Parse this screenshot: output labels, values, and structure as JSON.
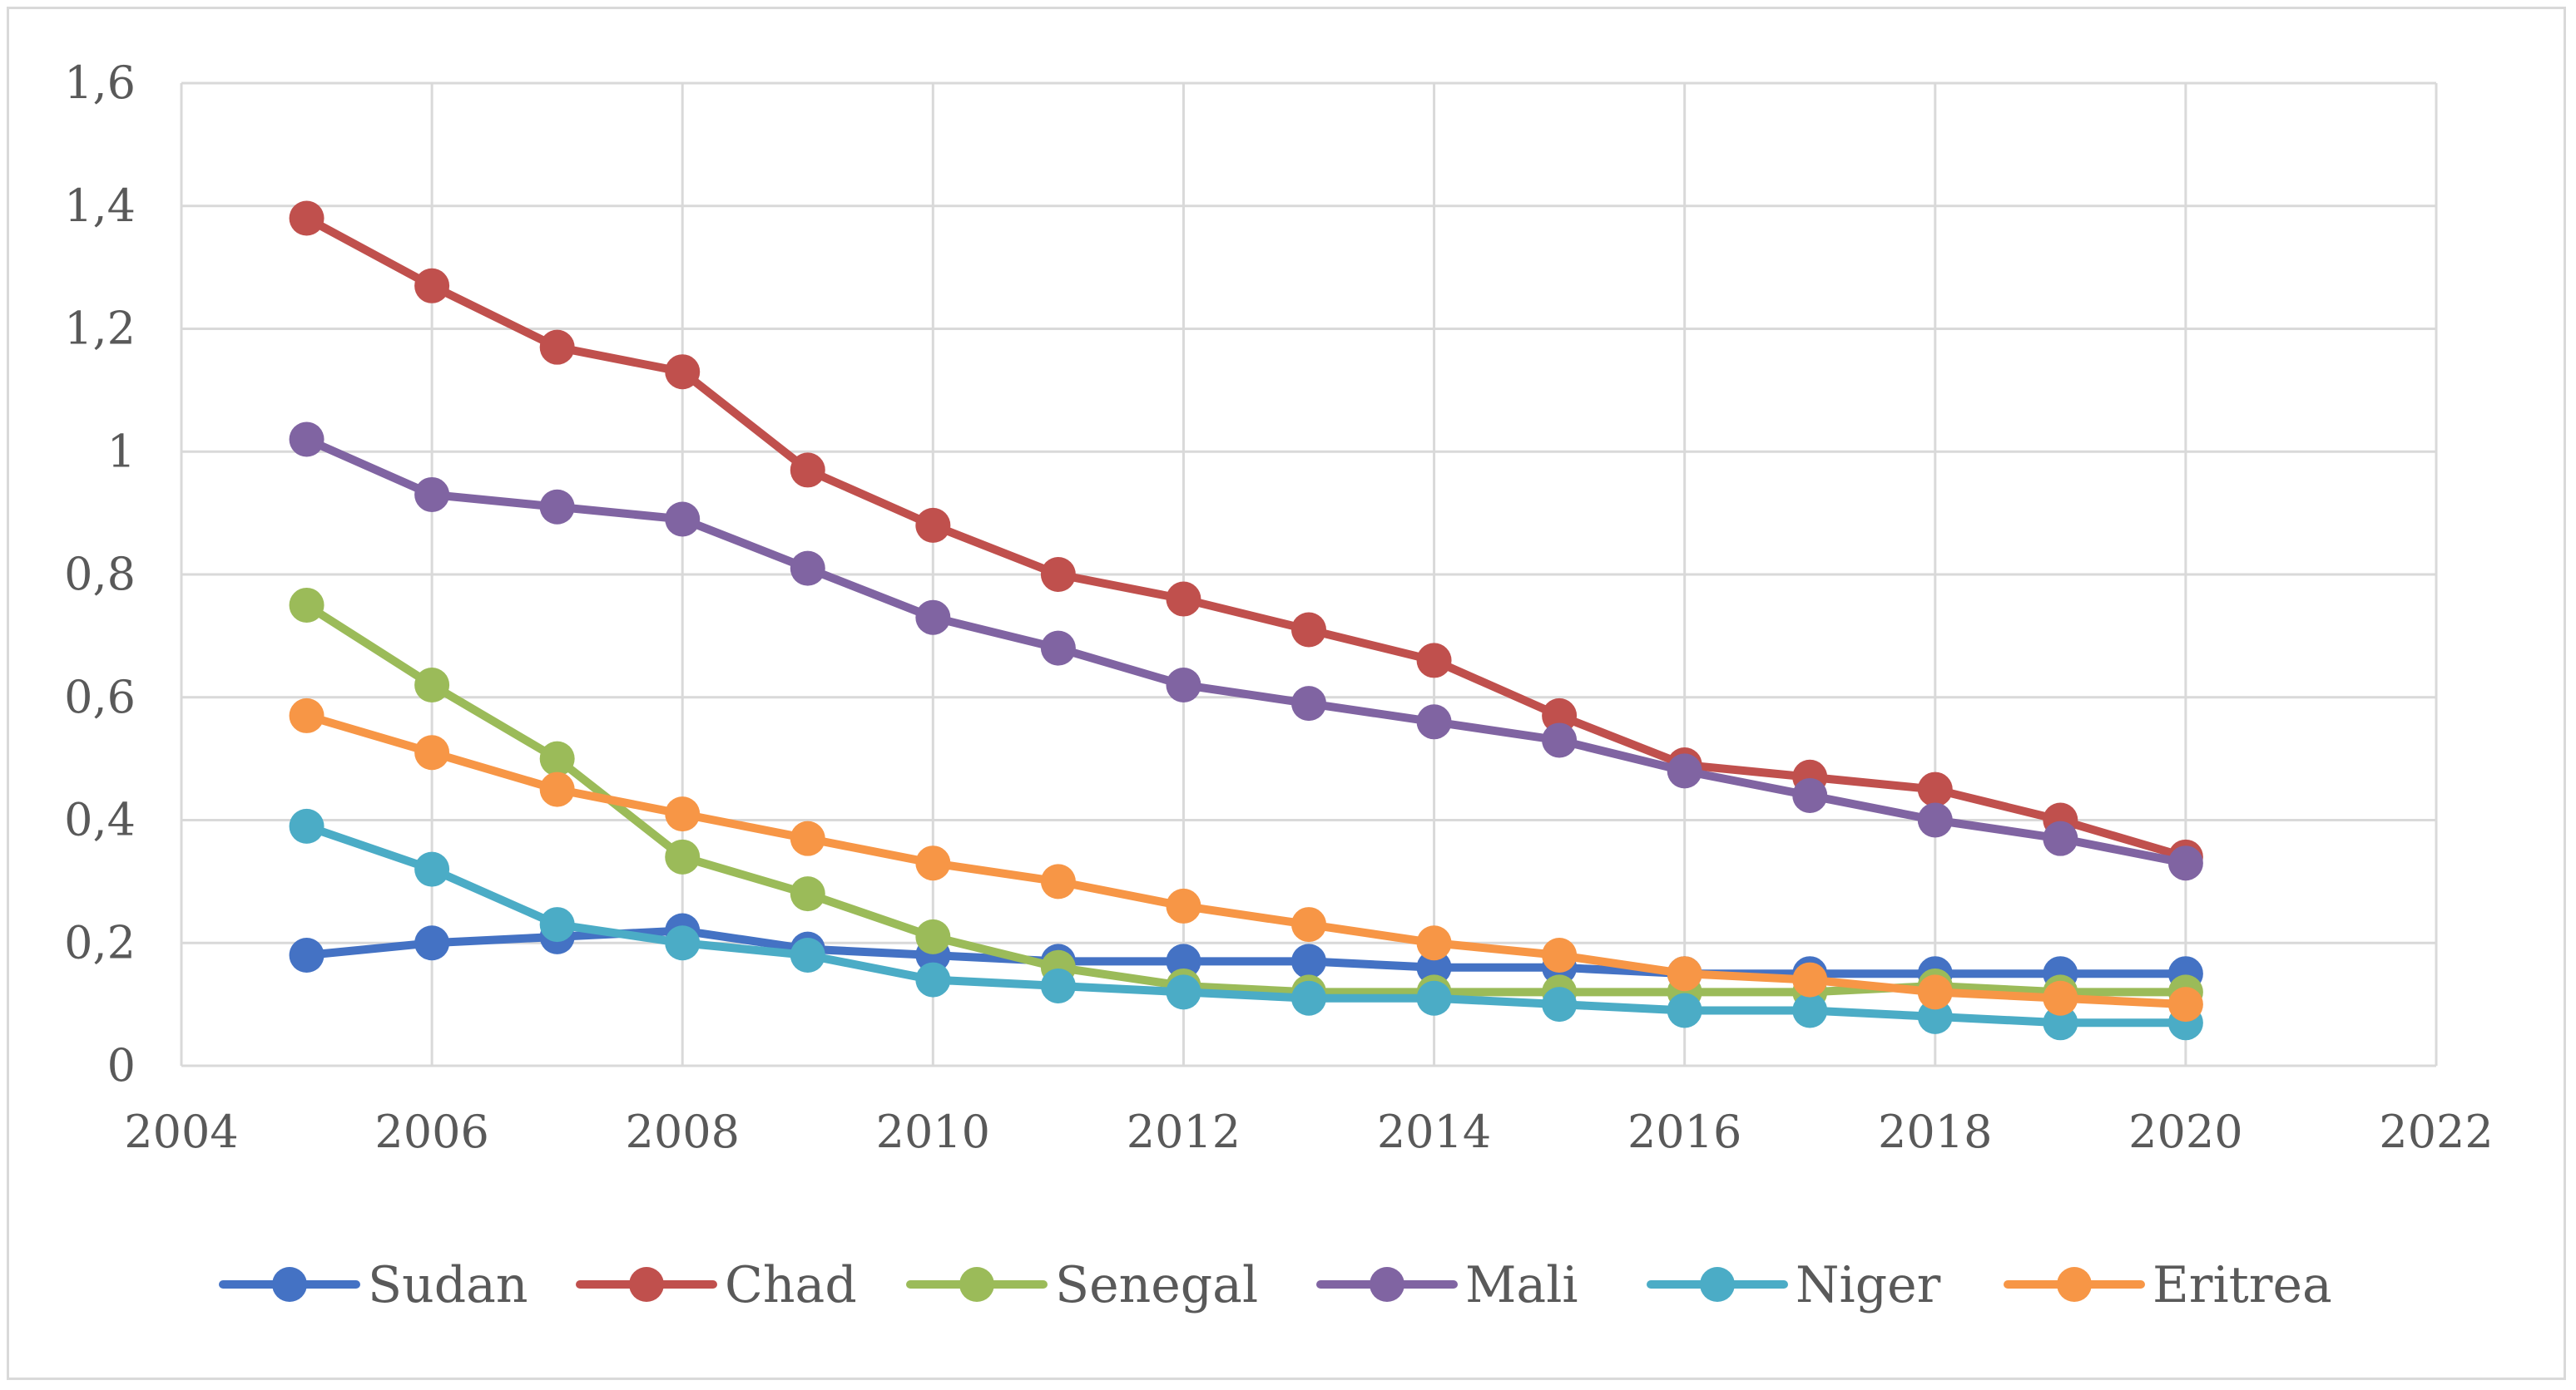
{
  "chart_data": {
    "type": "line",
    "title": "",
    "xlabel": "",
    "ylabel": "",
    "xlim": [
      2004,
      2022
    ],
    "ylim": [
      0,
      1.6
    ],
    "x_ticks": [
      2004,
      2006,
      2008,
      2010,
      2012,
      2014,
      2016,
      2018,
      2020,
      2022
    ],
    "x_tick_labels": [
      "2004",
      "2006",
      "2008",
      "2010",
      "2012",
      "2014",
      "2016",
      "2018",
      "2020",
      "2022"
    ],
    "y_ticks": [
      0,
      0.2,
      0.4,
      0.6,
      0.8,
      1,
      1.2,
      1.4,
      1.6
    ],
    "y_tick_labels": [
      "0",
      "0,2",
      "0,4",
      "0,6",
      "0,8",
      "1",
      "1,2",
      "1,4",
      "1,6"
    ],
    "grid": true,
    "legend_position": "bottom",
    "x": [
      2005,
      2006,
      2007,
      2008,
      2009,
      2010,
      2011,
      2012,
      2013,
      2014,
      2015,
      2016,
      2017,
      2018,
      2019,
      2020
    ],
    "series": [
      {
        "name": "Sudan",
        "color": "#4472c4",
        "values": [
          0.18,
          0.2,
          0.21,
          0.22,
          0.19,
          0.18,
          0.17,
          0.17,
          0.17,
          0.16,
          0.16,
          0.15,
          0.15,
          0.15,
          0.15,
          0.15
        ]
      },
      {
        "name": "Chad",
        "color": "#c0504d",
        "values": [
          1.38,
          1.27,
          1.17,
          1.13,
          0.97,
          0.88,
          0.8,
          0.76,
          0.71,
          0.66,
          0.57,
          0.49,
          0.47,
          0.45,
          0.4,
          0.34
        ]
      },
      {
        "name": "Senegal",
        "color": "#9bbb59",
        "values": [
          0.75,
          0.62,
          0.5,
          0.34,
          0.28,
          0.21,
          0.16,
          0.13,
          0.12,
          0.12,
          0.12,
          0.12,
          0.12,
          0.13,
          0.12,
          0.12
        ]
      },
      {
        "name": "Mali",
        "color": "#8064a2",
        "values": [
          1.02,
          0.93,
          0.91,
          0.89,
          0.81,
          0.73,
          0.68,
          0.62,
          0.59,
          0.56,
          0.53,
          0.48,
          0.44,
          0.4,
          0.37,
          0.33
        ]
      },
      {
        "name": "Niger",
        "color": "#4bacc6",
        "values": [
          0.39,
          0.32,
          0.23,
          0.2,
          0.18,
          0.14,
          0.13,
          0.12,
          0.11,
          0.11,
          0.1,
          0.09,
          0.09,
          0.08,
          0.07,
          0.07
        ]
      },
      {
        "name": "Eritrea",
        "color": "#f79646",
        "values": [
          0.57,
          0.51,
          0.45,
          0.41,
          0.37,
          0.33,
          0.3,
          0.26,
          0.23,
          0.2,
          0.18,
          0.15,
          0.14,
          0.12,
          0.11,
          0.1
        ]
      }
    ]
  },
  "style": {
    "grid_color": "#d9d9d9",
    "axis_color": "#d9d9d9",
    "text_color": "#595959"
  }
}
